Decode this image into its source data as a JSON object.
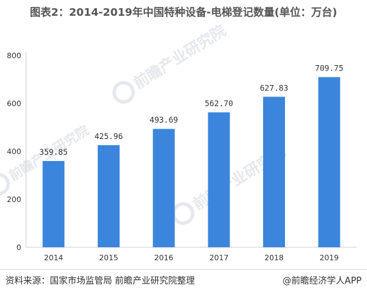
{
  "chart_data": {
    "type": "bar",
    "title": "图表2：2014-2019年中国特种设备-电梯登记数量(单位：万台)",
    "categories": [
      "2014",
      "2015",
      "2016",
      "2017",
      "2018",
      "2019"
    ],
    "values": [
      359.85,
      425.96,
      493.69,
      562.7,
      627.83,
      709.75
    ],
    "value_labels": [
      "359.85",
      "425.96",
      "493.69",
      "562.70",
      "627.83",
      "709.75"
    ],
    "ylim": [
      0,
      800
    ],
    "yticks": [
      0,
      200,
      400,
      600,
      800
    ],
    "grid": false,
    "legend": "none",
    "bar_color": "#3b86dc"
  },
  "footer": {
    "source": "资料来源：国家市场监管局 前瞻产业研究院整理",
    "brand": "@前瞻经济学人APP"
  },
  "watermark": {
    "text": "前瞻产业研究院",
    "color": "#e6e8ee"
  }
}
